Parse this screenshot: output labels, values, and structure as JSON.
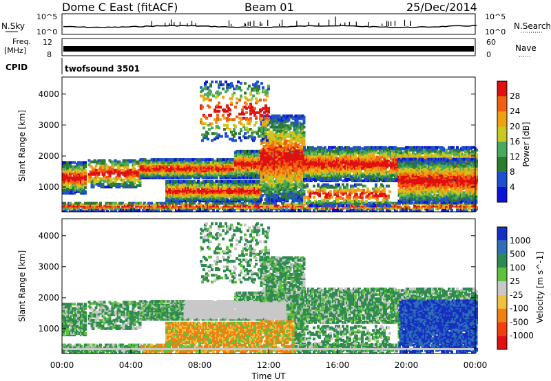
{
  "header": {
    "station": "Dome C East (fitACF)",
    "beam": "Beam 01",
    "date": "25/Dec/2014"
  },
  "noise_panel": {
    "left_label": "N.Sky",
    "left_top": "10^5",
    "left_bottom": "10^0",
    "right_label": "N.Search",
    "right_top": "10^5",
    "right_bottom": "10^0"
  },
  "freq_panel": {
    "left_label_1": "Freq.",
    "left_label_2": "[MHz]",
    "left_top": "12",
    "left_bottom": "8",
    "right_label": "Nave",
    "right_top": "60",
    "right_bottom": "0"
  },
  "cpid": {
    "label": "CPID",
    "value": "twofsound 3501"
  },
  "chart_data": [
    {
      "type": "heatmap",
      "name": "power",
      "ylabel": "Slant Range [km]",
      "yticks": [
        "1000",
        "2000",
        "3000",
        "4000"
      ],
      "ylim": [
        200,
        4550
      ],
      "xlim": [
        0,
        24
      ],
      "colorbar": {
        "label": "Power [dB]",
        "ticks": [
          "4",
          "8",
          "12",
          "16",
          "20",
          "24",
          "28"
        ],
        "colors": [
          "#0a14d8",
          "#1f4fd0",
          "#2f7b2e",
          "#4aa860",
          "#c8c820",
          "#f0a010",
          "#f06010",
          "#e01010"
        ]
      }
    },
    {
      "type": "heatmap",
      "name": "velocity",
      "ylabel": "Slant Range [km]",
      "yticks": [
        "1000",
        "2000",
        "3000",
        "4000"
      ],
      "ylim": [
        200,
        4550
      ],
      "xlim": [
        0,
        24
      ],
      "xlabel": "Time UT",
      "xticks": [
        "00:00",
        "04:00",
        "08:00",
        "12:00",
        "16:00",
        "20:00",
        "00:00"
      ],
      "colorbar": {
        "label": "Velocity [m s^-1]",
        "ticks": [
          "1000",
          "500",
          "100",
          "25",
          "-25",
          "-100",
          "-500",
          "-1000"
        ],
        "colors": [
          "#1430c0",
          "#2f6fb8",
          "#2e8a50",
          "#5fc040",
          "#c8c8c8",
          "#f0c040",
          "#f08010",
          "#f04010",
          "#e01010"
        ]
      }
    }
  ]
}
